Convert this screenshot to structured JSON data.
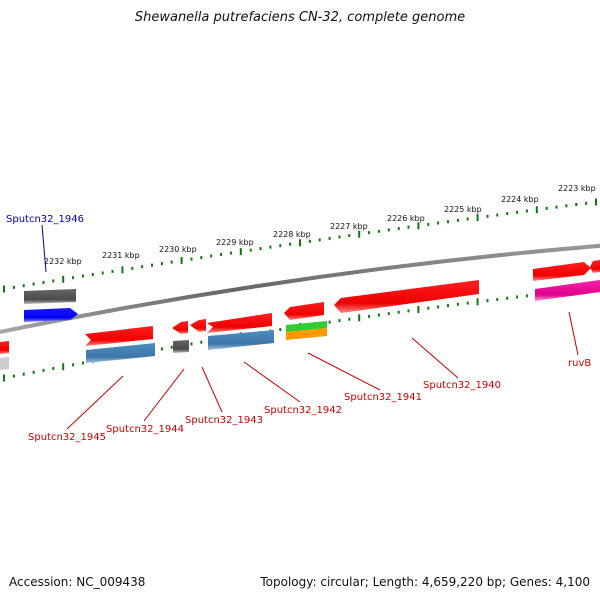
{
  "title": "Shewanella putrefaciens CN-32, complete genome",
  "footer": {
    "accession": "Accession: NC_009438",
    "summary": "Topology: circular; Length: 4,659,220 bp; Genes: 4,100"
  },
  "colors": {
    "red_gene": "#ff0000",
    "blue_gene": "#0000ff",
    "steel_gene": "#4682b4",
    "gray_gene": "#555555",
    "green_gene": "#33cc33",
    "orange_gene": "#ff9900",
    "magenta_gene": "#ee1199",
    "tick_green": "#117711",
    "backbone": "#777777",
    "label_red": "#cc0000",
    "label_blue": "#0000aa"
  },
  "kbp_labels": [
    "2223 kbp",
    "2224 kbp",
    "2225 kbp",
    "2226 kbp",
    "2227 kbp",
    "2228 kbp",
    "2229 kbp",
    "2230 kbp",
    "2231 kbp",
    "2232 kbp"
  ],
  "gene_labels": [
    {
      "name": "Sputcn32_1946",
      "color": "blue"
    },
    {
      "name": "Sputcn32_1945",
      "color": "red"
    },
    {
      "name": "Sputcn32_1944",
      "color": "red"
    },
    {
      "name": "Sputcn32_1943",
      "color": "red"
    },
    {
      "name": "Sputcn32_1942",
      "color": "red"
    },
    {
      "name": "Sputcn32_1941",
      "color": "red"
    },
    {
      "name": "Sputcn32_1940",
      "color": "red"
    },
    {
      "name": "ruvB",
      "color": "red"
    }
  ]
}
